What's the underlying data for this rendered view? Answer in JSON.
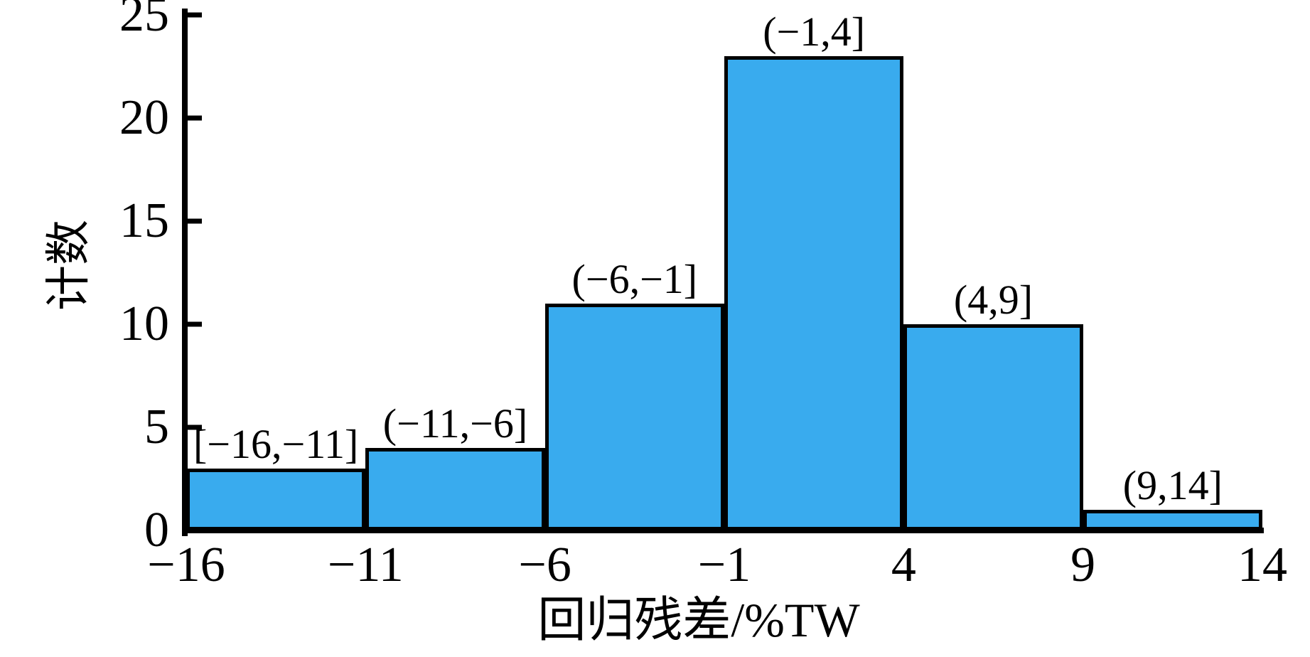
{
  "chart_data": {
    "type": "bar",
    "subtype": "histogram",
    "categories": [
      "[−16,−11]",
      "(−11,−6]",
      "(−6,−1]",
      "(−1,4]",
      "(4,9]",
      "(9,14]"
    ],
    "values": [
      3,
      4,
      11,
      23,
      10,
      1
    ],
    "bin_edges": [
      -16,
      -11,
      -6,
      -1,
      4,
      9,
      14
    ],
    "x_tick_labels": [
      "−16",
      "−11",
      "−6",
      "−1",
      "4",
      "9",
      "14"
    ],
    "y_ticks": [
      0,
      5,
      10,
      15,
      20,
      25
    ],
    "ylim": [
      0,
      25
    ],
    "xlim": [
      -16,
      14
    ],
    "xlabel": "回归残差/%TW",
    "ylabel": "计数",
    "bar_fill_color": "#39ABEE",
    "bar_border_color": "#000000",
    "axis_color": "#000000",
    "grid": false,
    "legend": false,
    "title": ""
  }
}
